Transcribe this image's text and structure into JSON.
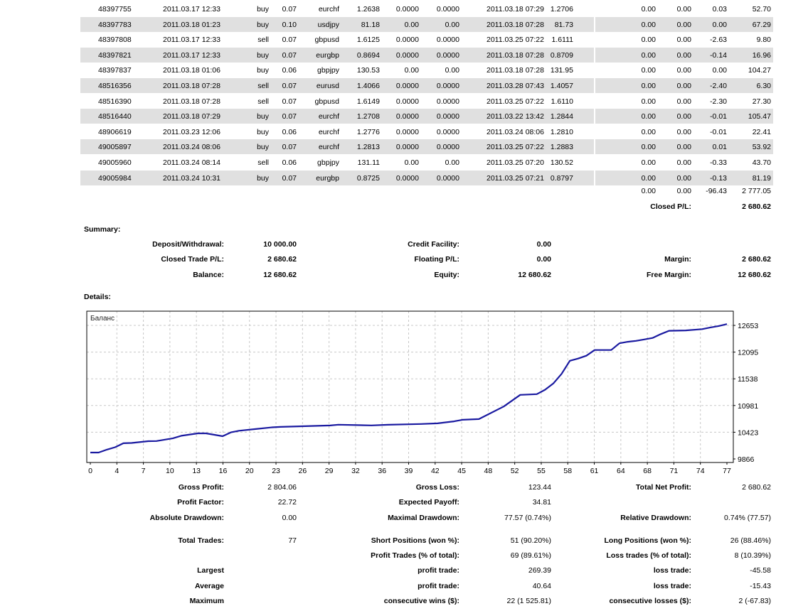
{
  "trades": {
    "rows": [
      [
        "48397755",
        "2011.03.17 12:33",
        "buy",
        "0.07",
        "eurchf",
        "1.2638",
        "0.0000",
        "0.0000",
        "2011.03.18 07:29",
        "1.2706",
        "0.00",
        "0.00",
        "0.03",
        "52.70"
      ],
      [
        "48397783",
        "2011.03.18 01:23",
        "buy",
        "0.10",
        "usdjpy",
        "81.18",
        "0.00",
        "0.00",
        "2011.03.18 07:28",
        "81.73",
        "0.00",
        "0.00",
        "0.00",
        "67.29"
      ],
      [
        "48397808",
        "2011.03.17 12:33",
        "sell",
        "0.07",
        "gbpusd",
        "1.6125",
        "0.0000",
        "0.0000",
        "2011.03.25 07:22",
        "1.6111",
        "0.00",
        "0.00",
        "-2.63",
        "9.80"
      ],
      [
        "48397821",
        "2011.03.17 12:33",
        "buy",
        "0.07",
        "eurgbp",
        "0.8694",
        "0.0000",
        "0.0000",
        "2011.03.18 07:28",
        "0.8709",
        "0.00",
        "0.00",
        "-0.14",
        "16.96"
      ],
      [
        "48397837",
        "2011.03.18 01:06",
        "buy",
        "0.06",
        "gbpjpy",
        "130.53",
        "0.00",
        "0.00",
        "2011.03.18 07:28",
        "131.95",
        "0.00",
        "0.00",
        "0.00",
        "104.27"
      ],
      [
        "48516356",
        "2011.03.18 07:28",
        "sell",
        "0.07",
        "eurusd",
        "1.4066",
        "0.0000",
        "0.0000",
        "2011.03.28 07:43",
        "1.4057",
        "0.00",
        "0.00",
        "-2.40",
        "6.30"
      ],
      [
        "48516390",
        "2011.03.18 07:28",
        "sell",
        "0.07",
        "gbpusd",
        "1.6149",
        "0.0000",
        "0.0000",
        "2011.03.25 07:22",
        "1.6110",
        "0.00",
        "0.00",
        "-2.30",
        "27.30"
      ],
      [
        "48516440",
        "2011.03.18 07:29",
        "buy",
        "0.07",
        "eurchf",
        "1.2708",
        "0.0000",
        "0.0000",
        "2011.03.22 13:42",
        "1.2844",
        "0.00",
        "0.00",
        "-0.01",
        "105.47"
      ],
      [
        "48906619",
        "2011.03.23 12:06",
        "buy",
        "0.06",
        "eurchf",
        "1.2776",
        "0.0000",
        "0.0000",
        "2011.03.24 08:06",
        "1.2810",
        "0.00",
        "0.00",
        "-0.01",
        "22.41"
      ],
      [
        "49005897",
        "2011.03.24 08:06",
        "buy",
        "0.07",
        "eurchf",
        "1.2813",
        "0.0000",
        "0.0000",
        "2011.03.25 07:22",
        "1.2883",
        "0.00",
        "0.00",
        "0.01",
        "53.92"
      ],
      [
        "49005960",
        "2011.03.24 08:14",
        "sell",
        "0.06",
        "gbpjpy",
        "131.11",
        "0.00",
        "0.00",
        "2011.03.25 07:20",
        "130.52",
        "0.00",
        "0.00",
        "-0.33",
        "43.70"
      ],
      [
        "49005984",
        "2011.03.24 10:31",
        "buy",
        "0.07",
        "eurgbp",
        "0.8725",
        "0.0000",
        "0.0000",
        "2011.03.25 07:21",
        "0.8797",
        "0.00",
        "0.00",
        "-0.13",
        "81.19"
      ]
    ],
    "totals": {
      "commission": "0.00",
      "taxes": "0.00",
      "swap": "-96.43",
      "profit": "2 777.05"
    },
    "closed_pl_label": "Closed P/L:",
    "closed_pl_value": "2 680.62"
  },
  "summary": {
    "title": "Summary:",
    "deposit_label": "Deposit/Withdrawal:",
    "deposit_value": "10 000.00",
    "credit_label": "Credit Facility:",
    "credit_value": "0.00",
    "closed_label": "Closed Trade P/L:",
    "closed_value": "2 680.62",
    "floating_label": "Floating P/L:",
    "floating_value": "0.00",
    "margin_label": "Margin:",
    "margin_value": "2 680.62",
    "balance_label": "Balance:",
    "balance_value": "12 680.62",
    "equity_label": "Equity:",
    "equity_value": "12 680.62",
    "free_margin_label": "Free Margin:",
    "free_margin_value": "12 680.62"
  },
  "details": {
    "title": "Details:"
  },
  "chart_data": {
    "type": "line",
    "title": "Баланс",
    "xlabel": "",
    "ylabel": "",
    "x_ticks": [
      "0",
      "4",
      "7",
      "10",
      "13",
      "16",
      "20",
      "23",
      "26",
      "29",
      "32",
      "36",
      "39",
      "42",
      "45",
      "48",
      "52",
      "55",
      "58",
      "61",
      "64",
      "68",
      "71",
      "74",
      "77"
    ],
    "y_ticks": [
      "12653",
      "12095",
      "11538",
      "10981",
      "10423",
      "9866"
    ],
    "xlim": [
      0,
      77
    ],
    "ylim": [
      9866,
      12950
    ],
    "grid": true,
    "series": [
      {
        "name": "Баланс",
        "color": "#1a1aa0",
        "x": [
          0,
          1,
          2,
          3,
          4,
          5,
          7,
          8,
          10,
          11,
          13,
          14,
          15,
          16,
          17,
          18,
          20,
          22,
          23,
          29,
          30,
          34,
          36,
          40,
          42,
          44,
          45,
          47,
          50,
          52,
          54,
          55,
          56,
          57,
          58,
          59,
          60,
          61,
          63,
          64,
          65,
          66,
          67,
          68,
          69,
          70,
          72,
          74,
          75,
          76,
          77
        ],
        "y": [
          10000,
          10000,
          10060,
          10110,
          10193,
          10200,
          10237,
          10240,
          10297,
          10350,
          10400,
          10400,
          10370,
          10341,
          10420,
          10455,
          10490,
          10525,
          10535,
          10564,
          10580,
          10565,
          10579,
          10595,
          10608,
          10650,
          10683,
          10698,
          10960,
          11203,
          11218,
          11310,
          11440,
          11640,
          11915,
          11960,
          12020,
          12138,
          12138,
          12280,
          12310,
          12330,
          12360,
          12391,
          12470,
          12540,
          12548,
          12575,
          12610,
          12640,
          12680
        ]
      }
    ]
  },
  "stats": {
    "gross_profit_label": "Gross Profit:",
    "gross_profit": "2 804.06",
    "gross_loss_label": "Gross Loss:",
    "gross_loss": "123.44",
    "net_profit_label": "Total Net Profit:",
    "net_profit": "2 680.62",
    "profit_factor_label": "Profit Factor:",
    "profit_factor": "22.72",
    "expected_payoff_label": "Expected Payoff:",
    "expected_payoff": "34.81",
    "abs_dd_label": "Absolute Drawdown:",
    "abs_dd": "0.00",
    "max_dd_label": "Maximal Drawdown:",
    "max_dd": "77.57 (0.74%)",
    "rel_dd_label": "Relative Drawdown:",
    "rel_dd": "0.74% (77.57)",
    "total_trades_label": "Total Trades:",
    "total_trades": "77",
    "short_label": "Short Positions (won %):",
    "short": "51 (90.20%)",
    "long_label": "Long Positions (won %):",
    "long": "26 (88.46%)",
    "profit_trades_label": "Profit Trades (% of total):",
    "profit_trades": "69 (89.61%)",
    "loss_trades_label": "Loss trades (% of total):",
    "loss_trades": "8 (10.39%)",
    "largest_label": "Largest",
    "largest_profit_label": "profit trade:",
    "largest_profit": "269.39",
    "largest_loss_label": "loss trade:",
    "largest_loss": "-45.58",
    "average_label": "Average",
    "average_profit_label": "profit trade:",
    "average_profit": "40.64",
    "average_loss_label": "loss trade:",
    "average_loss": "-15.43",
    "maximum_label": "Maximum",
    "max_wins_label": "consecutive wins ($):",
    "max_wins": "22 (1 525.81)",
    "max_losses_label": "consecutive losses ($):",
    "max_losses": "2 (-67.83)"
  }
}
